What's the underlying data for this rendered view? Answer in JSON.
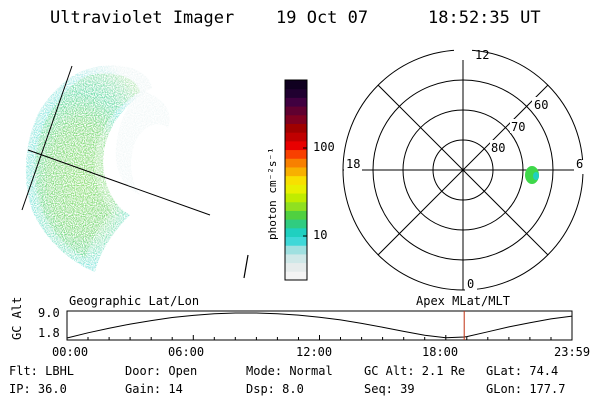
{
  "header": {
    "instrument": "Ultraviolet Imager",
    "date": "19 Oct 07",
    "time": "18:52:35 UT"
  },
  "colorbar": {
    "label": "photon cm⁻²s⁻¹",
    "ticks": [
      "100",
      "10"
    ],
    "colors": [
      "#f4f4f4",
      "#e6ecec",
      "#cfe8e8",
      "#9fe0e0",
      "#3fd8d8",
      "#1fd0c0",
      "#30cc80",
      "#50d040",
      "#90e020",
      "#c0ec00",
      "#e8f000",
      "#f8e000",
      "#f8b000",
      "#f88000",
      "#f84000",
      "#e80000",
      "#c00000",
      "#a00000",
      "#800020",
      "#600030",
      "#400040",
      "#200030",
      "#100020"
    ]
  },
  "polar": {
    "mlt_labels": [
      "12",
      "6",
      "0",
      "18"
    ],
    "lat_labels": [
      "80",
      "70",
      "60"
    ]
  },
  "chart_data": {
    "type": "line",
    "title_left": "Geographic Lat/Lon",
    "title_right": "Apex MLat/MLT",
    "ylabel": "GC Alt",
    "yticks": [
      "9.0",
      "1.8"
    ],
    "ylim": [
      1.8,
      9.0
    ],
    "xticks": [
      "00:00",
      "06:00",
      "12:00",
      "18:00",
      "23:59"
    ],
    "xlim_hours": [
      0,
      24
    ],
    "current_time_hours": 18.876,
    "series": [
      {
        "x": [
          0,
          1,
          2,
          3,
          4,
          5,
          6,
          7,
          8,
          9,
          10,
          11,
          12,
          13,
          14,
          15,
          16,
          17,
          18,
          18.88,
          19,
          20,
          21,
          22,
          23,
          24
        ],
        "y": [
          1.8,
          3.3,
          4.6,
          5.8,
          6.8,
          7.7,
          8.3,
          8.8,
          9.0,
          9.0,
          8.8,
          8.4,
          7.8,
          7.0,
          6.0,
          4.9,
          3.7,
          2.6,
          1.9,
          2.1,
          2.2,
          3.6,
          5.0,
          6.2,
          7.3,
          8.1
        ]
      }
    ]
  },
  "info": {
    "flt": "Flt: LBHL",
    "ip": "IP: 36.0",
    "door": "Door: Open",
    "gain": "Gain: 14",
    "mode": "Mode: Normal",
    "dsp": "Dsp:    8.0",
    "gcalt": "GC Alt: 2.1 Re",
    "seq": "Seq: 39",
    "glat": "GLat:  74.4",
    "glon": "GLon: 177.7"
  }
}
